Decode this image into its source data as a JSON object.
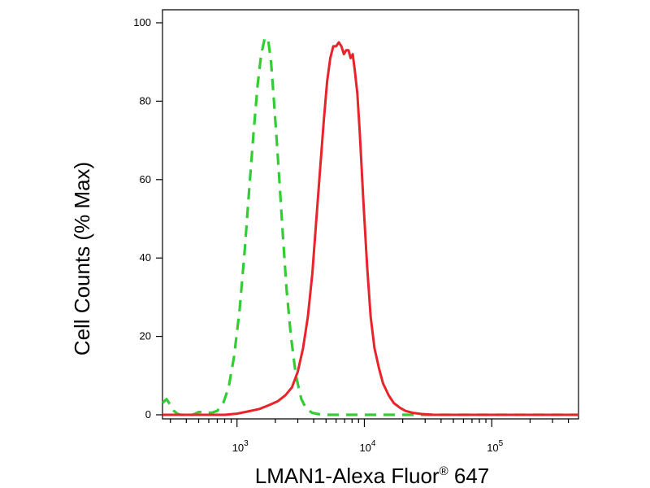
{
  "chart_data": {
    "type": "line",
    "title": "",
    "xlabel": "LMAN1-Alexa Fluor",
    "xlabel_superscript": "®",
    "xlabel_suffix": " 647",
    "ylabel": "Cell Counts (% Max)",
    "x_scale": "log",
    "xlim": [
      260,
      480000
    ],
    "ylim": [
      0,
      100
    ],
    "x_ticks": [
      {
        "value": 1000,
        "base": "10",
        "exp": "3"
      },
      {
        "value": 10000,
        "base": "10",
        "exp": "4"
      },
      {
        "value": 100000,
        "base": "10",
        "exp": "5"
      }
    ],
    "y_ticks": [
      0,
      20,
      40,
      60,
      80,
      100
    ],
    "grid": false,
    "legend": "none",
    "series": [
      {
        "style": "dashed",
        "color": "#33cc33",
        "x": [
          260,
          280,
          300,
          320,
          340,
          360,
          400,
          450,
          500,
          560,
          630,
          700,
          780,
          860,
          950,
          1050,
          1150,
          1250,
          1350,
          1450,
          1550,
          1650,
          1750,
          1850,
          1950,
          2050,
          2150,
          2300,
          2450,
          2650,
          2900,
          3200,
          3500,
          3900,
          4300,
          5000,
          6000,
          8000,
          20000,
          60000,
          200000,
          480000
        ],
        "y": [
          3,
          4,
          2.5,
          1,
          0.3,
          0,
          0,
          0,
          0.7,
          0.7,
          0.5,
          1,
          3,
          7,
          15,
          27,
          42,
          58,
          72,
          84,
          92,
          96,
          96,
          90,
          80,
          70,
          60,
          45,
          32,
          20,
          10,
          4,
          1.5,
          0.5,
          0.2,
          0,
          0,
          0,
          0,
          0,
          0,
          0
        ]
      },
      {
        "style": "solid",
        "color": "#e8232a",
        "x": [
          260,
          500,
          800,
          1000,
          1200,
          1500,
          1800,
          2100,
          2400,
          2700,
          3000,
          3300,
          3600,
          3900,
          4200,
          4500,
          4800,
          5100,
          5400,
          5700,
          6000,
          6300,
          6600,
          6900,
          7200,
          7500,
          7800,
          8100,
          8400,
          8800,
          9200,
          9800,
          10500,
          11200,
          12000,
          13000,
          14000,
          15500,
          17000,
          19000,
          21000,
          24000,
          28000,
          35000,
          60000,
          200000,
          480000
        ],
        "y": [
          0,
          0,
          0,
          0.3,
          0.8,
          1.5,
          2.5,
          3.5,
          5,
          7,
          11,
          17,
          25,
          36,
          50,
          63,
          75,
          85,
          91,
          94,
          94,
          95,
          94,
          92,
          93,
          93,
          91,
          92,
          88,
          82,
          72,
          55,
          38,
          25,
          17,
          12,
          8,
          5,
          3,
          1.8,
          1,
          0.5,
          0.2,
          0,
          0,
          0,
          0
        ]
      }
    ]
  }
}
